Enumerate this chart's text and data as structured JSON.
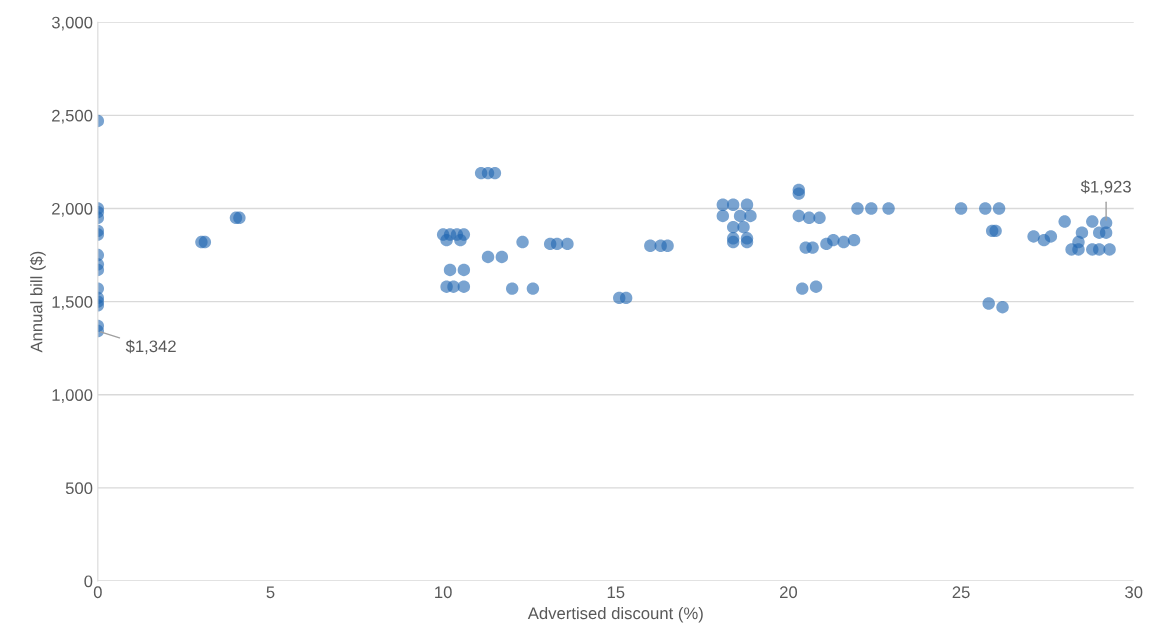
{
  "chart_data": {
    "type": "scatter",
    "xlabel": "Advertised discount (%)",
    "ylabel": "Annual bill ($)",
    "xlim": [
      0,
      30
    ],
    "xticks": [
      0,
      5,
      10,
      15,
      20,
      25,
      30
    ],
    "ylim": [
      0,
      3000
    ],
    "yticks": [
      {
        "value": 0,
        "label": "0"
      },
      {
        "value": 500,
        "label": "500"
      },
      {
        "value": 1000,
        "label": "1,000"
      },
      {
        "value": 1500,
        "label": "1,500"
      },
      {
        "value": 2000,
        "label": "2,000"
      },
      {
        "value": 2500,
        "label": "2,500"
      },
      {
        "value": 3000,
        "label": "3,000"
      }
    ],
    "grid": "y",
    "marker": "circle",
    "series": [
      {
        "color": "#1f66b0",
        "x": [
          0,
          0,
          0,
          0,
          0,
          0,
          0,
          0,
          0,
          0,
          0,
          0,
          0,
          0,
          0,
          3.0,
          3.1,
          4.0,
          4.1,
          10.0,
          10.2,
          10.4,
          10.6,
          10.1,
          10.5,
          10.2,
          10.6,
          10.1,
          10.3,
          10.6,
          11.1,
          11.3,
          11.5,
          11.3,
          11.7,
          12.0,
          12.6,
          12.3,
          13.1,
          13.3,
          13.6,
          15.1,
          15.3,
          16.0,
          16.3,
          16.5,
          18.1,
          18.4,
          18.8,
          18.1,
          18.6,
          18.9,
          18.4,
          18.7,
          18.4,
          18.8,
          18.4,
          18.8,
          20.3,
          20.3,
          20.3,
          20.6,
          20.9,
          20.5,
          20.7,
          20.4,
          20.8,
          21.1,
          21.3,
          21.6,
          21.9,
          22.0,
          22.4,
          22.9,
          25.0,
          25.7,
          26.1,
          25.9,
          26.0,
          25.8,
          26.2,
          27.1,
          27.4,
          27.6,
          28.0,
          28.2,
          28.4,
          28.4,
          28.5,
          28.8,
          29.2,
          28.8,
          29.0,
          29.3,
          29.0,
          29.2
        ],
        "values": [
          2470,
          2000,
          1980,
          1950,
          1880,
          1860,
          1750,
          1700,
          1670,
          1570,
          1520,
          1500,
          1480,
          1370,
          1342,
          1820,
          1820,
          1950,
          1950,
          1860,
          1860,
          1860,
          1860,
          1830,
          1830,
          1670,
          1670,
          1580,
          1580,
          1580,
          2190,
          2190,
          2190,
          1740,
          1740,
          1570,
          1570,
          1820,
          1810,
          1810,
          1810,
          1520,
          1520,
          1800,
          1800,
          1800,
          2020,
          2020,
          2020,
          1960,
          1960,
          1960,
          1900,
          1900,
          1840,
          1840,
          1820,
          1820,
          2100,
          2080,
          1960,
          1950,
          1950,
          1790,
          1790,
          1570,
          1580,
          1810,
          1830,
          1820,
          1830,
          2000,
          2000,
          2000,
          2000,
          2000,
          2000,
          1880,
          1880,
          1490,
          1470,
          1850,
          1830,
          1850,
          1930,
          1780,
          1780,
          1820,
          1870,
          1930,
          1923,
          1780,
          1780,
          1780,
          1870,
          1870
        ]
      }
    ],
    "annotations": [
      {
        "text": "$1,342",
        "x": 0,
        "y": 1342
      },
      {
        "text": "$1,923",
        "x": 29.2,
        "y": 1923
      }
    ]
  }
}
